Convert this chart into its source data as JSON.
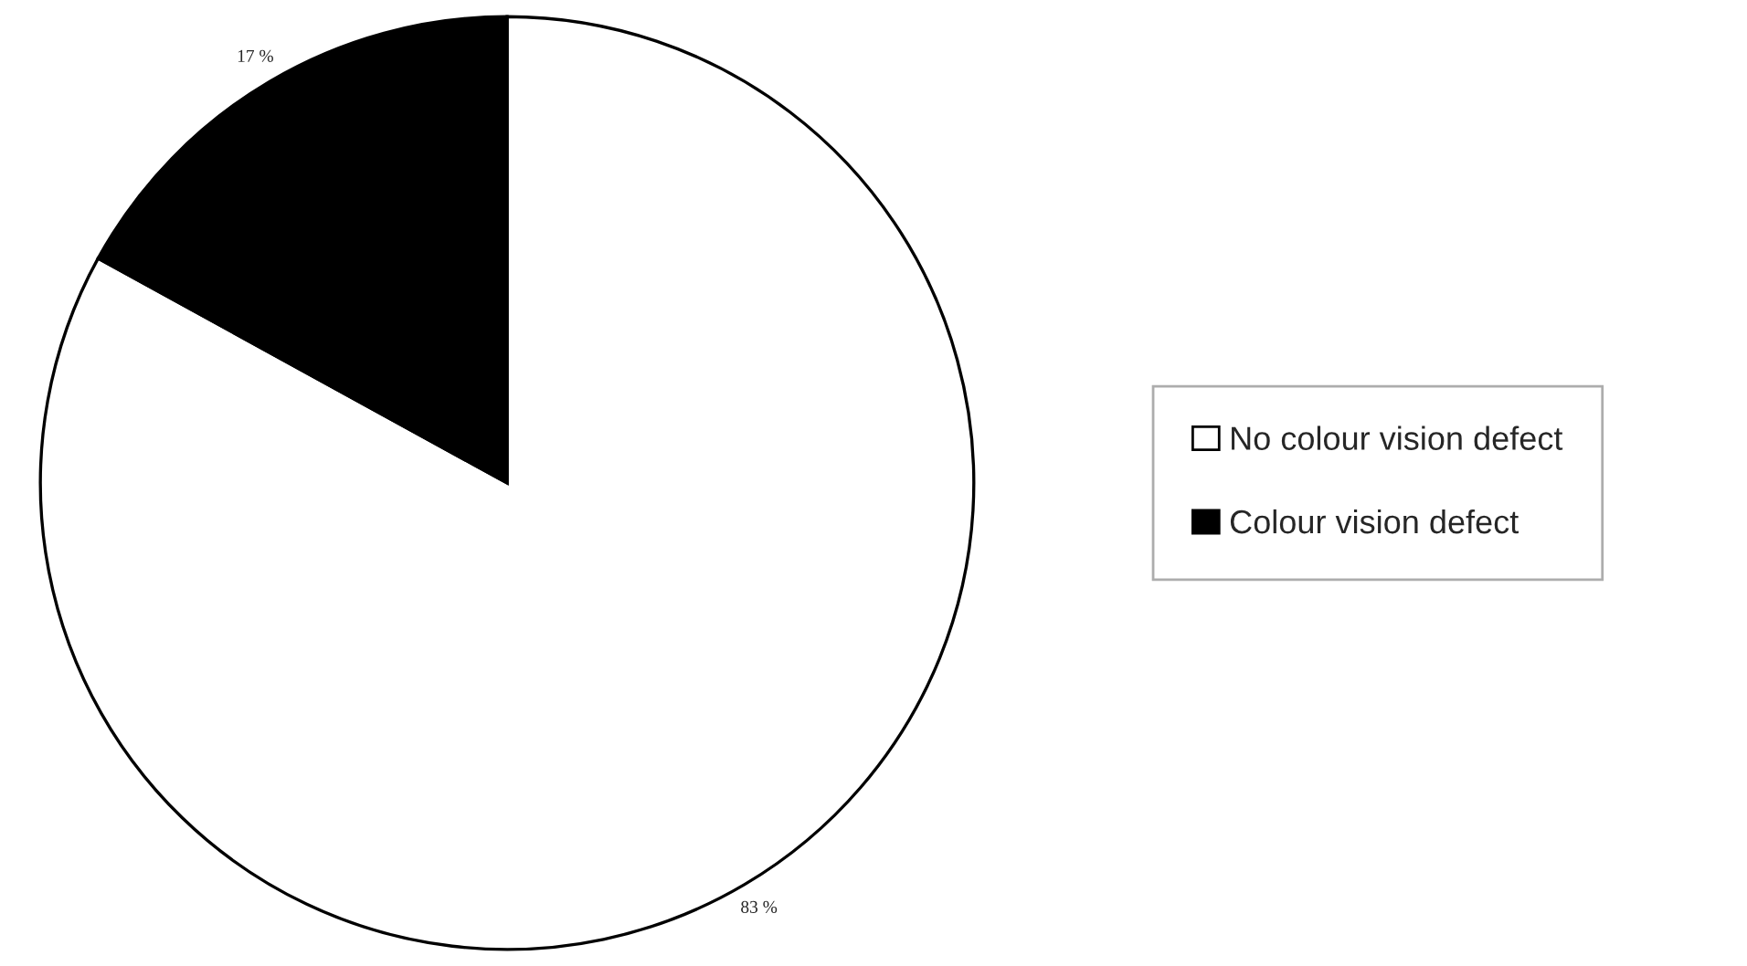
{
  "chart_data": {
    "type": "pie",
    "categories": [
      "No colour vision defect",
      "Colour vision defect"
    ],
    "values": [
      83,
      17
    ],
    "colors": [
      "#ffffff",
      "#000000"
    ],
    "value_labels": [
      "83 %",
      "17 %"
    ],
    "legend": "right"
  }
}
